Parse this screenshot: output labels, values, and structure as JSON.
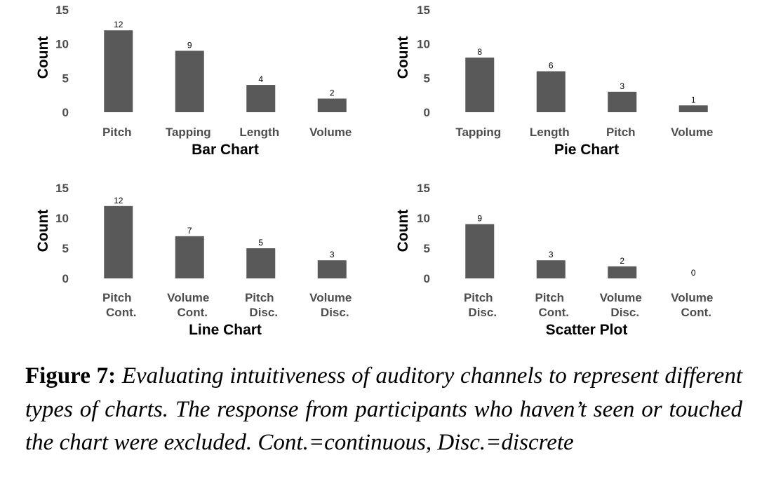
{
  "chart_data": [
    {
      "type": "bar",
      "title": "Bar Chart",
      "xlabel": "",
      "ylabel": "Count",
      "ylim": [
        0,
        15
      ],
      "yticks": [
        0,
        5,
        10,
        15
      ],
      "categories": [
        [
          "Pitch"
        ],
        [
          "Tapping"
        ],
        [
          "Length"
        ],
        [
          "Volume"
        ]
      ],
      "values": [
        12,
        9,
        4,
        2
      ]
    },
    {
      "type": "bar",
      "title": "Pie Chart",
      "xlabel": "",
      "ylabel": "Count",
      "ylim": [
        0,
        15
      ],
      "yticks": [
        0,
        5,
        10,
        15
      ],
      "categories": [
        [
          "Tapping"
        ],
        [
          "Length"
        ],
        [
          "Pitch"
        ],
        [
          "Volume"
        ]
      ],
      "values": [
        8,
        6,
        3,
        1
      ]
    },
    {
      "type": "bar",
      "title": "Line Chart",
      "xlabel": "",
      "ylabel": "Count",
      "ylim": [
        0,
        15
      ],
      "yticks": [
        0,
        5,
        10,
        15
      ],
      "categories": [
        [
          "Pitch",
          "Cont."
        ],
        [
          "Volume",
          "Cont."
        ],
        [
          "Pitch",
          "Disc."
        ],
        [
          "Volume",
          "Disc."
        ]
      ],
      "values": [
        12,
        7,
        5,
        3
      ]
    },
    {
      "type": "bar",
      "title": "Scatter Plot",
      "xlabel": "",
      "ylabel": "Count",
      "ylim": [
        0,
        15
      ],
      "yticks": [
        0,
        5,
        10,
        15
      ],
      "categories": [
        [
          "Pitch",
          "Disc."
        ],
        [
          "Pitch",
          "Cont."
        ],
        [
          "Volume",
          "Disc."
        ],
        [
          "Volume",
          "Cont."
        ]
      ],
      "values": [
        9,
        3,
        2,
        0
      ]
    }
  ],
  "colors": {
    "bar": "#595959",
    "tick_text": "#4d4d4d"
  },
  "caption": {
    "label": "Figure 7:",
    "text": "Evaluating intuitiveness of auditory channels to represent different types of charts. The response from participants who haven’t seen or touched the chart were excluded. Cont.=continuous, Disc.=discrete"
  }
}
